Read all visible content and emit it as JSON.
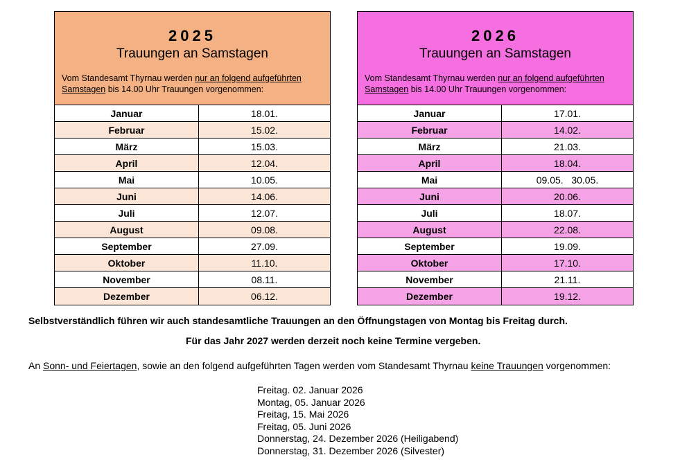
{
  "tables": [
    {
      "year": "2025",
      "subtitle": "Trauungen an Samstagen",
      "intro_plain": "Vom Standesamt Thyrnau werden ",
      "intro_underlined1": "nur an folgend aufgeführten",
      "intro_underlined2": "Samstagen",
      "intro_rest": " bis 14.00 Uhr Trauungen vorgenommen:",
      "rows": [
        [
          "Januar",
          "18.01."
        ],
        [
          "Februar",
          "15.02."
        ],
        [
          "März",
          "15.03."
        ],
        [
          "April",
          "12.04."
        ],
        [
          "Mai",
          "10.05."
        ],
        [
          "Juni",
          "14.06."
        ],
        [
          "Juli",
          "12.07."
        ],
        [
          "August",
          "09.08."
        ],
        [
          "September",
          "27.09."
        ],
        [
          "Oktober",
          "11.10."
        ],
        [
          "November",
          "08.11."
        ],
        [
          "Dezember",
          "06.12."
        ]
      ]
    },
    {
      "year": "2026",
      "subtitle": "Trauungen an Samstagen",
      "intro_plain": "Vom Standesamt Thyrnau werden ",
      "intro_underlined1": "nur an folgend aufgeführten",
      "intro_underlined2": "Samstagen",
      "intro_rest": " bis 14.00 Uhr Trauungen vorgenommen:",
      "rows": [
        [
          "Januar",
          "17.01."
        ],
        [
          "Februar",
          "14.02."
        ],
        [
          "März",
          "21.03."
        ],
        [
          "April",
          "18.04."
        ],
        [
          "Mai",
          "09.05.   30.05."
        ],
        [
          "Juni",
          "20.06."
        ],
        [
          "Juli",
          "18.07."
        ],
        [
          "August",
          "22.08."
        ],
        [
          "September",
          "19.09."
        ],
        [
          "Oktober",
          "17.10."
        ],
        [
          "November",
          "21.11."
        ],
        [
          "Dezember",
          "19.12."
        ]
      ]
    }
  ],
  "note1": "Selbstverständlich führen wir auch standesamtliche Trauungen an den Öffnungstagen von Montag bis Freitag durch.",
  "note2": "Für das Jahr 2027 werden derzeit noch keine Termine vergeben.",
  "note3": {
    "a": "An ",
    "b": "Sonn- und Feiertagen",
    "c": ", sowie an den folgend aufgeführten Tagen werden vom Standesamt Thyrnau ",
    "d": "keine Trauungen",
    "e": " vorgenommen:"
  },
  "excluded_days": [
    "Freitag. 02. Januar 2026",
    "Montag, 05. Januar 2026",
    "Freitag, 15. Mai 2026",
    "Freitag, 05. Juni 2026",
    "Donnerstag, 24. Dezember 2026 (Heiligabend)",
    "Donnerstag, 31. Dezember 2026 (Silvester)"
  ],
  "colors": {
    "header2025": "#f4b183",
    "row2025": "#fbe5d6",
    "header2026": "#f56fe1",
    "row2026": "#f5a3e6"
  }
}
